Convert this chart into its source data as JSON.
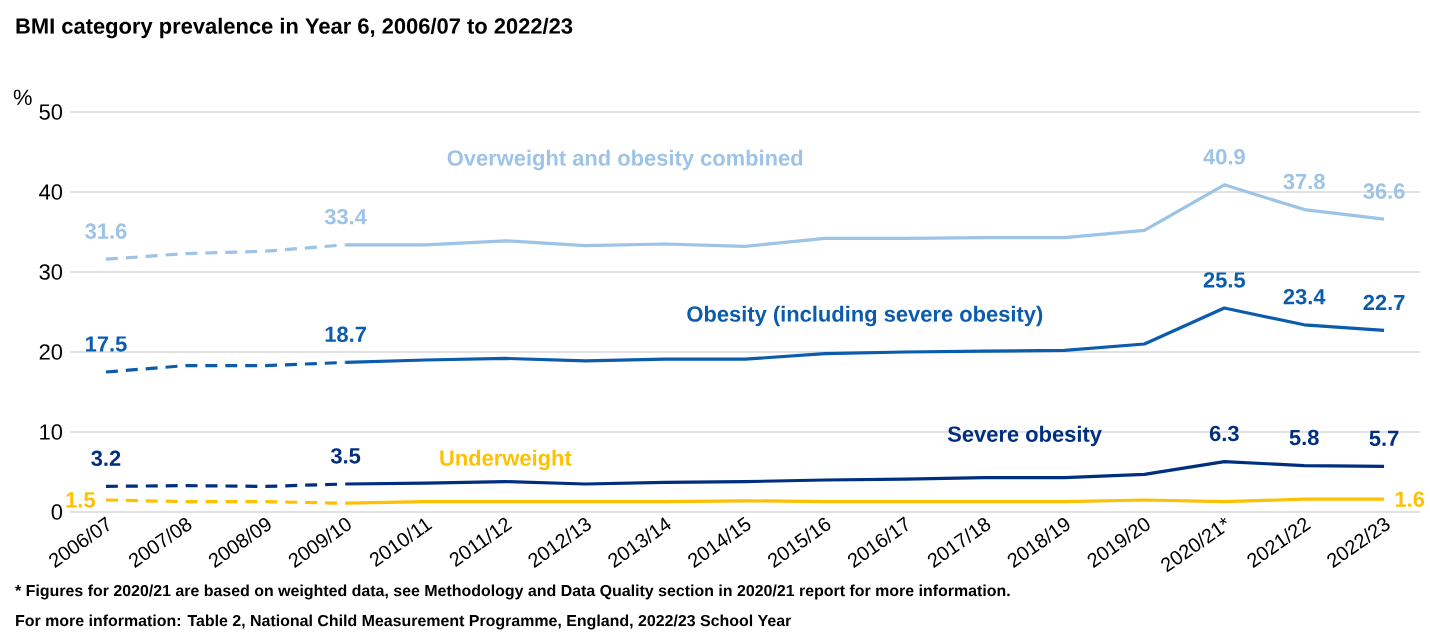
{
  "chart_data": {
    "type": "line",
    "title": "BMI category prevalence in Year 6, 2006/07 to 2022/23",
    "ylabel": "%",
    "categories": [
      "2006/07",
      "2007/08",
      "2008/09",
      "2009/10",
      "2010/11",
      "2011/12",
      "2012/13",
      "2013/14",
      "2014/15",
      "2015/16",
      "2016/17",
      "2017/18",
      "2018/19",
      "2019/20",
      "2020/21*",
      "2021/22",
      "2022/23"
    ],
    "series": [
      {
        "color": "#9dc3e6",
        "line_style": "dashed",
        "values": [
          31.6,
          32.3,
          32.6,
          33.4,
          null,
          null,
          null,
          null,
          null,
          null,
          null,
          null,
          null,
          null,
          null,
          null,
          null
        ],
        "value_labels": [
          "31.6",
          null,
          null,
          "33.4",
          null,
          null,
          null,
          null,
          null,
          null,
          null,
          null,
          null,
          null,
          null,
          null,
          null
        ]
      },
      {
        "name": "Overweight and obesity combined",
        "color": "#9dc3e6",
        "line_style": "solid",
        "values": [
          null,
          null,
          null,
          33.4,
          33.4,
          33.9,
          33.3,
          33.5,
          33.2,
          34.2,
          34.2,
          34.3,
          34.3,
          35.2,
          40.9,
          37.8,
          36.6
        ],
        "value_labels": [
          null,
          null,
          null,
          null,
          null,
          null,
          null,
          null,
          null,
          null,
          null,
          null,
          null,
          null,
          "40.9",
          "37.8",
          "36.6"
        ]
      },
      {
        "color": "#0b5cad",
        "line_style": "dashed",
        "values": [
          17.5,
          18.3,
          18.3,
          18.7,
          null,
          null,
          null,
          null,
          null,
          null,
          null,
          null,
          null,
          null,
          null,
          null,
          null
        ],
        "value_labels": [
          "17.5",
          null,
          null,
          "18.7",
          null,
          null,
          null,
          null,
          null,
          null,
          null,
          null,
          null,
          null,
          null,
          null,
          null
        ]
      },
      {
        "name": "Obesity (including severe obesity)",
        "color": "#0b5cad",
        "line_style": "solid",
        "values": [
          null,
          null,
          null,
          18.7,
          19.0,
          19.2,
          18.9,
          19.1,
          19.1,
          19.8,
          20.0,
          20.1,
          20.2,
          21.0,
          25.5,
          23.4,
          22.7
        ],
        "value_labels": [
          null,
          null,
          null,
          null,
          null,
          null,
          null,
          null,
          null,
          null,
          null,
          null,
          null,
          null,
          "25.5",
          "23.4",
          "22.7"
        ]
      },
      {
        "color": "#002f80",
        "line_style": "dashed",
        "values": [
          3.2,
          3.3,
          3.2,
          3.5,
          null,
          null,
          null,
          null,
          null,
          null,
          null,
          null,
          null,
          null,
          null,
          null,
          null
        ],
        "value_labels": [
          "3.2",
          null,
          null,
          "3.5",
          null,
          null,
          null,
          null,
          null,
          null,
          null,
          null,
          null,
          null,
          null,
          null,
          null
        ]
      },
      {
        "name": "Severe obesity",
        "color": "#002f80",
        "line_style": "solid",
        "values": [
          null,
          null,
          null,
          3.5,
          3.6,
          3.8,
          3.5,
          3.7,
          3.8,
          4.0,
          4.1,
          4.3,
          4.3,
          4.7,
          6.3,
          5.8,
          5.7
        ],
        "value_labels": [
          null,
          null,
          null,
          null,
          null,
          null,
          null,
          null,
          null,
          null,
          null,
          null,
          null,
          null,
          "6.3",
          "5.8",
          "5.7"
        ]
      },
      {
        "color": "#ffc000",
        "line_style": "dashed",
        "values": [
          1.5,
          1.3,
          1.3,
          1.1,
          null,
          null,
          null,
          null,
          null,
          null,
          null,
          null,
          null,
          null,
          null,
          null,
          null
        ],
        "value_labels": [
          "1.5",
          null,
          null,
          null,
          null,
          null,
          null,
          null,
          null,
          null,
          null,
          null,
          null,
          null,
          null,
          null,
          null
        ]
      },
      {
        "name": "Underweight",
        "color": "#ffc000",
        "line_style": "solid",
        "values": [
          null,
          null,
          null,
          1.1,
          1.3,
          1.3,
          1.3,
          1.3,
          1.4,
          1.3,
          1.3,
          1.3,
          1.3,
          1.5,
          1.3,
          1.6,
          1.6
        ],
        "value_labels": [
          null,
          null,
          null,
          null,
          null,
          null,
          null,
          null,
          null,
          null,
          null,
          null,
          null,
          null,
          null,
          null,
          "1.6"
        ]
      }
    ],
    "ylim": [
      0,
      50
    ],
    "yticks": [
      0,
      10,
      20,
      30,
      40,
      50
    ],
    "grid": "y",
    "legend": false,
    "marker": "none",
    "annotations": [
      "* Figures for 2020/21 are based on weighted data, see Methodology and Data Quality section in 2020/21 report for more information.",
      "For more information: Table 2, National Child Measurement Programme, England, 2022/23 School Year"
    ]
  }
}
